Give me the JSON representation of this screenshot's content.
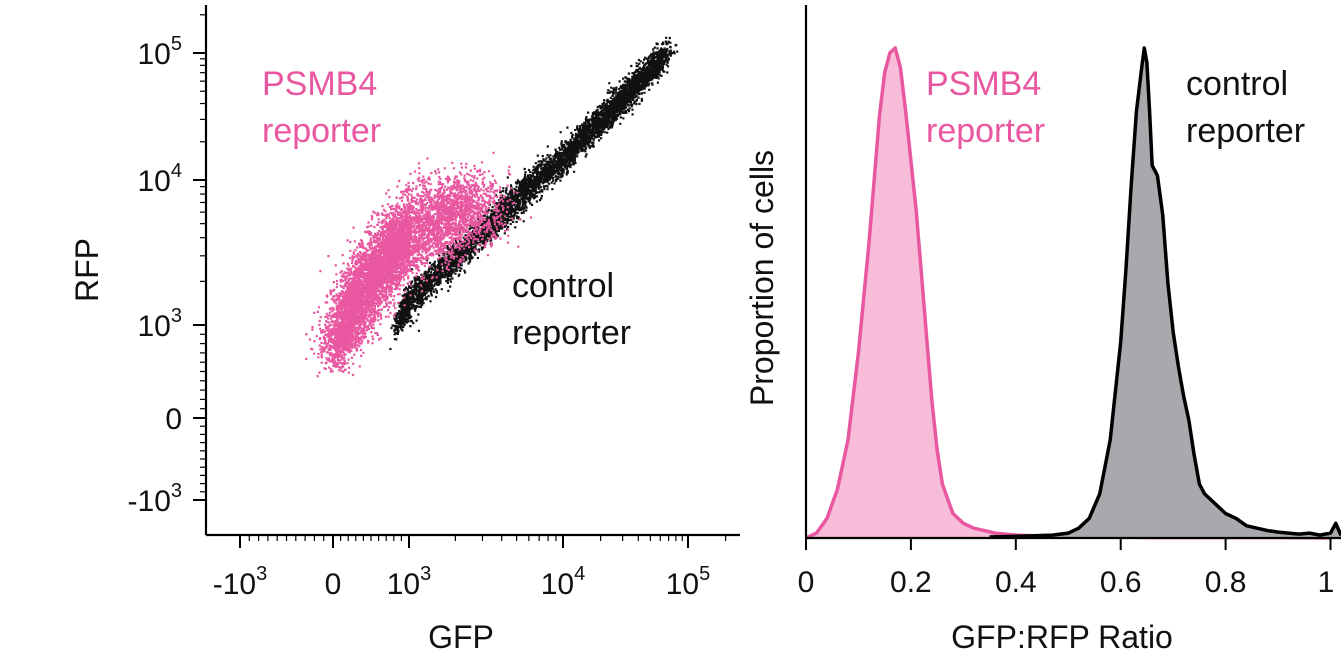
{
  "chart_data": [
    {
      "type": "scatter",
      "xlabel": "GFP",
      "ylabel": "RFP",
      "x_scale": "biexponential",
      "y_scale": "biexponential",
      "xlim": [
        -2000,
        200000
      ],
      "ylim": [
        -2000,
        200000
      ],
      "x_ticks": [
        {
          "value": -1000,
          "base": "-10",
          "exp": "3"
        },
        {
          "value": 0,
          "base": "0",
          "exp": ""
        },
        {
          "value": 1000,
          "base": "10",
          "exp": "3"
        },
        {
          "value": 10000,
          "base": "10",
          "exp": "4"
        },
        {
          "value": 100000,
          "base": "10",
          "exp": "5"
        }
      ],
      "y_ticks": [
        {
          "value": 100000,
          "base": "10",
          "exp": "5"
        },
        {
          "value": 10000,
          "base": "10",
          "exp": "4"
        },
        {
          "value": 1000,
          "base": "10",
          "exp": "3"
        },
        {
          "value": 0,
          "base": "0",
          "exp": ""
        },
        {
          "value": -1000,
          "base": "-10",
          "exp": "3"
        }
      ],
      "grid": false,
      "legend": "none",
      "series": [
        {
          "label_lines": [
            "PSMB4",
            "reporter"
          ],
          "color": "#e8579f"
        },
        {
          "label_lines": [
            "control",
            "reporter"
          ],
          "color": "#111111"
        }
      ]
    },
    {
      "type": "area",
      "xlabel": "GFP:RFP Ratio",
      "ylabel": "Proportion of cells",
      "xlim": [
        0,
        1.02
      ],
      "x_ticks": [
        0,
        0.2,
        0.4,
        0.6,
        0.8,
        1
      ],
      "grid": false,
      "legend": "none",
      "series": [
        {
          "label_lines": [
            "PSMB4",
            "reporter"
          ],
          "color": "#e8579f",
          "fill": "#f7bdd8",
          "x": [
            0,
            0.02,
            0.04,
            0.06,
            0.08,
            0.1,
            0.12,
            0.14,
            0.15,
            0.16,
            0.17,
            0.18,
            0.19,
            0.2,
            0.21,
            0.22,
            0.23,
            0.24,
            0.25,
            0.26,
            0.27,
            0.28,
            0.3,
            0.32,
            0.34,
            0.36,
            0.38,
            0.4,
            0.45,
            0.5,
            0.55,
            0.6,
            0.65,
            0.7,
            0.8,
            0.9,
            1.0
          ],
          "y": [
            0.0,
            0.01,
            0.04,
            0.1,
            0.2,
            0.38,
            0.6,
            0.86,
            0.95,
            0.99,
            1.0,
            0.96,
            0.87,
            0.77,
            0.67,
            0.54,
            0.41,
            0.28,
            0.18,
            0.11,
            0.08,
            0.05,
            0.03,
            0.02,
            0.015,
            0.01,
            0.008,
            0.006,
            0.004,
            0.003,
            0.002,
            0.002,
            0.001,
            0.001,
            0.001,
            0.001,
            0.0
          ]
        },
        {
          "label_lines": [
            "control",
            "reporter"
          ],
          "color": "#000000",
          "fill": "#a9a8ac",
          "x": [
            0.35,
            0.42,
            0.47,
            0.5,
            0.52,
            0.54,
            0.56,
            0.58,
            0.6,
            0.61,
            0.62,
            0.63,
            0.64,
            0.645,
            0.65,
            0.655,
            0.66,
            0.665,
            0.67,
            0.68,
            0.69,
            0.7,
            0.71,
            0.72,
            0.73,
            0.74,
            0.75,
            0.76,
            0.78,
            0.8,
            0.82,
            0.84,
            0.86,
            0.88,
            0.9,
            0.92,
            0.94,
            0.96,
            0.98,
            1.0,
            1.01,
            1.02
          ],
          "y": [
            0.002,
            0.004,
            0.006,
            0.01,
            0.02,
            0.04,
            0.09,
            0.2,
            0.4,
            0.55,
            0.72,
            0.87,
            0.96,
            1.0,
            0.97,
            0.87,
            0.76,
            0.75,
            0.74,
            0.66,
            0.52,
            0.42,
            0.35,
            0.29,
            0.24,
            0.17,
            0.11,
            0.09,
            0.07,
            0.05,
            0.04,
            0.025,
            0.02,
            0.015,
            0.012,
            0.01,
            0.008,
            0.01,
            0.006,
            0.01,
            0.03,
            0.005
          ]
        }
      ]
    }
  ]
}
